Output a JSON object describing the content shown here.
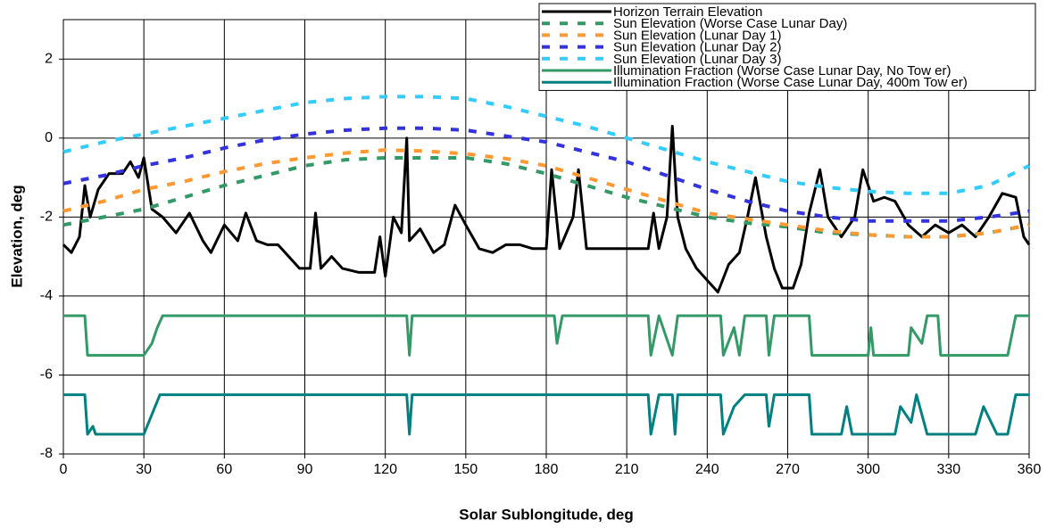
{
  "chart_data": {
    "type": "line",
    "xlabel": "Solar Sublongitude, deg",
    "ylabel": "Elevation, deg",
    "xlim": [
      0,
      360
    ],
    "ylim": [
      -8,
      3
    ],
    "xticks": [
      0,
      30,
      60,
      90,
      120,
      150,
      180,
      210,
      240,
      270,
      300,
      330,
      360
    ],
    "yticks": [
      -8,
      -6,
      -4,
      -2,
      0,
      2
    ],
    "grid": true,
    "legend": "upper right",
    "series": [
      {
        "name": "Horizon Terrain Elevation",
        "color": "#000000",
        "style": "solid",
        "x": [
          0,
          3,
          6,
          8,
          10,
          13,
          17,
          22,
          25,
          28,
          30,
          33,
          37,
          42,
          47,
          52,
          55,
          60,
          65,
          68,
          72,
          76,
          80,
          84,
          88,
          92,
          94,
          96,
          100,
          104,
          110,
          116,
          118,
          120,
          123,
          126,
          128,
          129,
          133,
          138,
          142,
          146,
          150,
          155,
          160,
          165,
          170,
          175,
          180,
          182,
          185,
          190,
          192,
          195,
          200,
          205,
          210,
          215,
          218,
          220,
          222,
          225,
          227,
          229,
          232,
          236,
          240,
          244,
          248,
          252,
          255,
          258,
          262,
          265,
          268,
          272,
          275,
          278,
          282,
          285,
          290,
          295,
          298,
          302,
          306,
          310,
          315,
          320,
          325,
          330,
          335,
          340,
          345,
          350,
          355,
          358,
          360
        ],
        "values": [
          -2.7,
          -2.9,
          -2.5,
          -1.2,
          -2.0,
          -1.3,
          -0.9,
          -0.9,
          -0.6,
          -1.0,
          -0.5,
          -1.8,
          -2.0,
          -2.4,
          -1.9,
          -2.6,
          -2.9,
          -2.2,
          -2.6,
          -1.9,
          -2.6,
          -2.7,
          -2.7,
          -3.0,
          -3.3,
          -3.3,
          -1.9,
          -3.3,
          -3.0,
          -3.3,
          -3.4,
          -3.4,
          -2.5,
          -3.5,
          -2.0,
          -2.4,
          0.0,
          -2.6,
          -2.3,
          -2.9,
          -2.7,
          -1.7,
          -2.2,
          -2.8,
          -2.9,
          -2.7,
          -2.7,
          -2.8,
          -2.8,
          -0.8,
          -2.8,
          -2.0,
          -0.8,
          -2.8,
          -2.8,
          -2.8,
          -2.8,
          -2.8,
          -2.8,
          -1.9,
          -2.8,
          -2.0,
          0.3,
          -2.0,
          -2.8,
          -3.3,
          -3.6,
          -3.9,
          -3.2,
          -2.9,
          -2.0,
          -1.0,
          -2.5,
          -3.3,
          -3.8,
          -3.8,
          -3.2,
          -1.9,
          -0.8,
          -2.0,
          -2.5,
          -2.0,
          -0.8,
          -1.6,
          -1.5,
          -1.6,
          -2.2,
          -2.5,
          -2.2,
          -2.4,
          -2.2,
          -2.5,
          -2.0,
          -1.4,
          -1.5,
          -2.5,
          -2.7
        ]
      },
      {
        "name": "Sun Elevation (Worse Case Lunar Day)",
        "color": "#339966",
        "style": "dashed",
        "x": [
          0,
          15,
          30,
          45,
          60,
          75,
          90,
          105,
          120,
          135,
          150,
          165,
          180,
          195,
          210,
          225,
          240,
          255,
          270,
          285,
          300,
          315,
          330,
          345,
          360
        ],
        "values": [
          -2.2,
          -2.0,
          -1.8,
          -1.5,
          -1.2,
          -0.95,
          -0.7,
          -0.55,
          -0.5,
          -0.5,
          -0.5,
          -0.65,
          -0.9,
          -1.2,
          -1.5,
          -1.75,
          -2.0,
          -2.15,
          -2.25,
          -2.4,
          -2.45,
          -2.5,
          -2.5,
          -2.4,
          -2.2
        ]
      },
      {
        "name": "Sun Elevation (Lunar Day 1)",
        "color": "#ff9933",
        "style": "dashed",
        "x": [
          0,
          15,
          30,
          45,
          60,
          75,
          90,
          105,
          120,
          135,
          150,
          165,
          180,
          195,
          210,
          225,
          240,
          255,
          270,
          285,
          300,
          315,
          330,
          345,
          360
        ],
        "values": [
          -1.85,
          -1.6,
          -1.3,
          -1.1,
          -0.85,
          -0.65,
          -0.5,
          -0.38,
          -0.3,
          -0.33,
          -0.4,
          -0.52,
          -0.7,
          -1.0,
          -1.3,
          -1.6,
          -1.9,
          -2.05,
          -2.2,
          -2.35,
          -2.45,
          -2.5,
          -2.5,
          -2.4,
          -2.2
        ]
      },
      {
        "name": "Sun Elevation (Lunar Day 2)",
        "color": "#3333dd",
        "style": "dashed",
        "x": [
          0,
          15,
          30,
          45,
          60,
          75,
          90,
          105,
          120,
          135,
          150,
          165,
          180,
          195,
          210,
          225,
          240,
          255,
          270,
          285,
          300,
          315,
          330,
          345,
          360
        ],
        "values": [
          -1.15,
          -0.95,
          -0.7,
          -0.5,
          -0.25,
          -0.05,
          0.1,
          0.2,
          0.25,
          0.25,
          0.2,
          0.05,
          -0.1,
          -0.35,
          -0.6,
          -0.95,
          -1.3,
          -1.6,
          -1.85,
          -2.0,
          -2.1,
          -2.1,
          -2.1,
          -2.0,
          -1.85
        ]
      },
      {
        "name": "Sun Elevation (Lunar Day 3)",
        "color": "#33ccff",
        "style": "dashed",
        "x": [
          0,
          15,
          30,
          45,
          60,
          75,
          90,
          105,
          120,
          135,
          150,
          165,
          180,
          195,
          210,
          225,
          240,
          255,
          270,
          285,
          300,
          315,
          330,
          345,
          360
        ],
        "values": [
          -0.35,
          -0.1,
          0.1,
          0.3,
          0.5,
          0.7,
          0.9,
          1.0,
          1.05,
          1.05,
          1.0,
          0.8,
          0.55,
          0.3,
          0.0,
          -0.3,
          -0.6,
          -0.85,
          -1.1,
          -1.25,
          -1.35,
          -1.4,
          -1.4,
          -1.2,
          -0.7
        ]
      },
      {
        "name": "Illumination Fraction (Worse Case Lunar Day, No Tow er)",
        "color": "#339966",
        "style": "solid",
        "x": [
          0,
          8,
          9,
          30,
          33,
          35,
          37,
          128,
          129,
          130,
          183,
          184,
          186,
          218,
          219,
          222,
          227,
          229,
          245,
          246,
          250,
          252,
          254,
          262,
          263,
          265,
          278,
          279,
          300,
          301,
          302,
          315,
          316,
          320,
          322,
          326,
          327,
          352,
          355,
          360
        ],
        "values": [
          -4.5,
          -4.5,
          -5.5,
          -5.5,
          -5.2,
          -4.8,
          -4.5,
          -4.5,
          -5.5,
          -4.5,
          -4.5,
          -5.2,
          -4.5,
          -4.5,
          -5.5,
          -4.5,
          -5.5,
          -4.5,
          -4.5,
          -5.5,
          -4.8,
          -5.5,
          -4.5,
          -4.5,
          -5.5,
          -4.5,
          -4.5,
          -5.5,
          -5.5,
          -4.8,
          -5.5,
          -5.5,
          -4.8,
          -5.2,
          -4.5,
          -4.5,
          -5.5,
          -5.5,
          -4.5,
          -4.5
        ]
      },
      {
        "name": "Illumination Fraction (Worse Case Lunar Day, 400m Tow er)",
        "color": "#008080",
        "style": "solid",
        "x": [
          0,
          8,
          9,
          11,
          12,
          30,
          33,
          36,
          128,
          129,
          130,
          218,
          219,
          222,
          227,
          228,
          229,
          245,
          246,
          250,
          254,
          262,
          263,
          265,
          278,
          279,
          290,
          292,
          294,
          310,
          312,
          316,
          318,
          322,
          340,
          343,
          348,
          352,
          355,
          360
        ],
        "values": [
          -6.5,
          -6.5,
          -7.5,
          -7.3,
          -7.5,
          -7.5,
          -7.0,
          -6.5,
          -6.5,
          -7.5,
          -6.5,
          -6.5,
          -7.5,
          -6.5,
          -6.5,
          -7.5,
          -6.5,
          -6.5,
          -7.5,
          -6.8,
          -6.5,
          -6.5,
          -7.3,
          -6.5,
          -6.5,
          -7.5,
          -7.5,
          -6.8,
          -7.5,
          -7.5,
          -6.8,
          -7.2,
          -6.5,
          -7.5,
          -7.5,
          -6.8,
          -7.5,
          -7.5,
          -6.5,
          -6.5
        ]
      }
    ]
  }
}
